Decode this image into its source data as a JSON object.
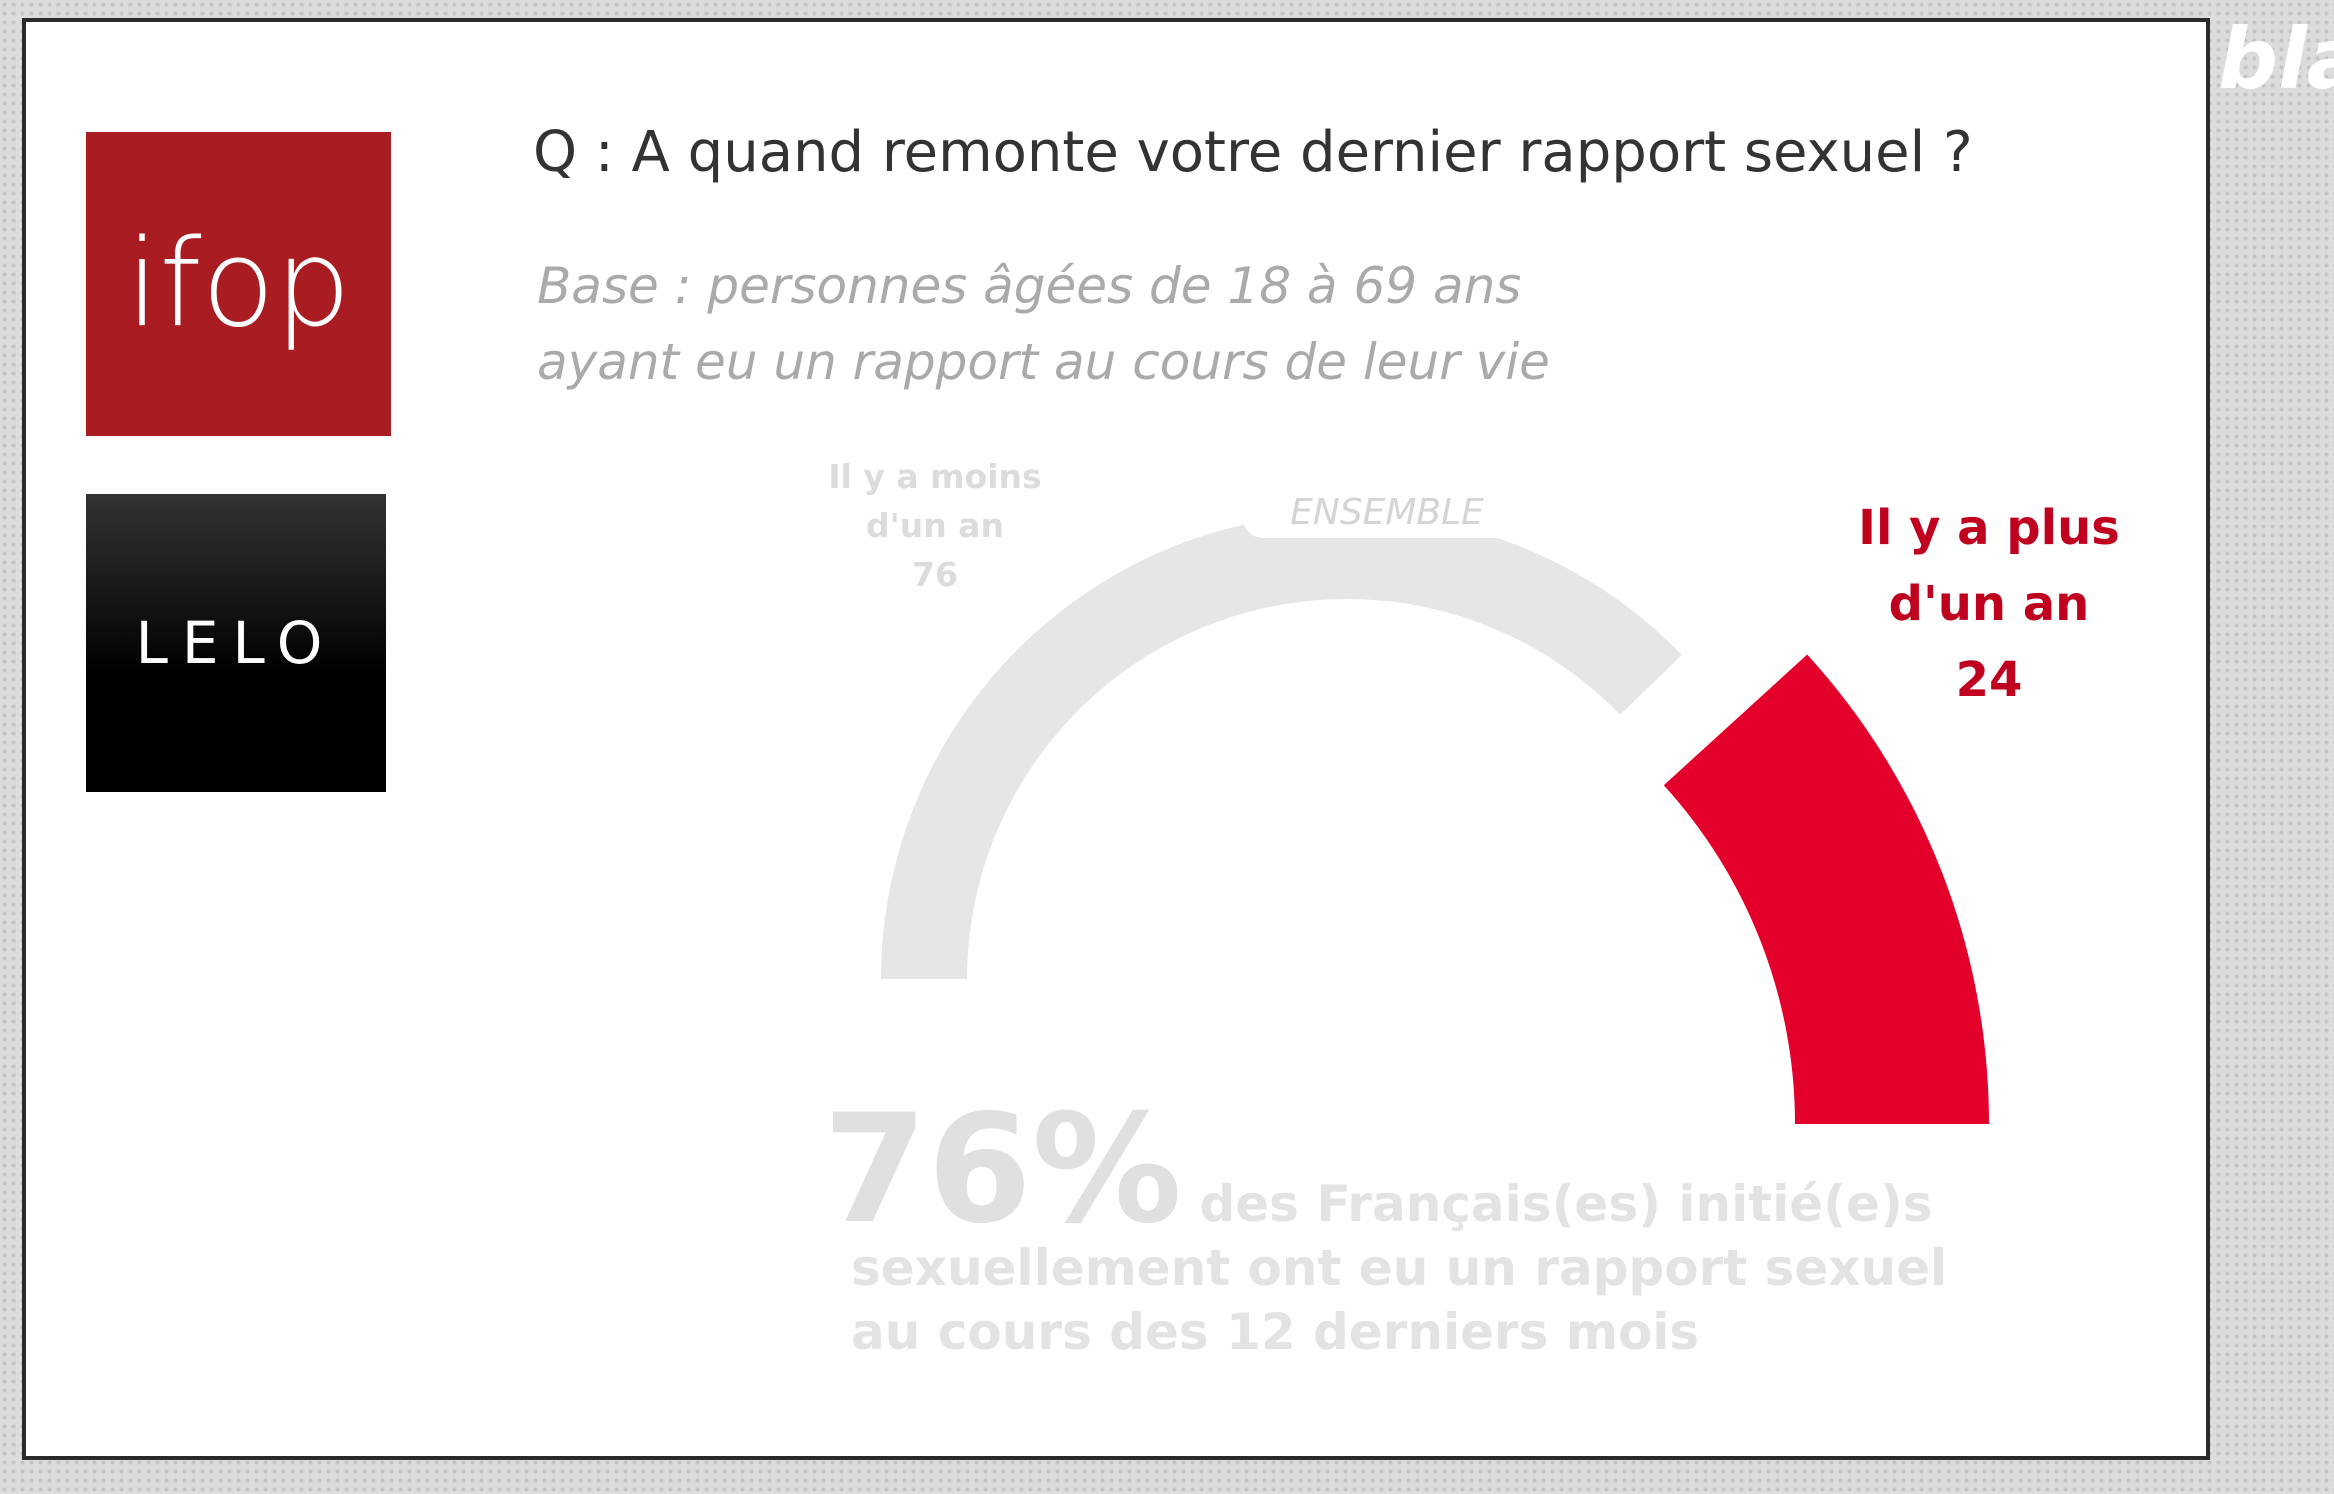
{
  "logos": {
    "ifop": "ifop",
    "lelo": "LELO"
  },
  "watermark": "bla",
  "chart_data": {
    "type": "gauge",
    "title": "Q : A quand remonte votre dernier rapport sexuel ?",
    "subtitle": "Base : personnes âgées de 18 à 69 ans ayant eu un rapport au cours de leur vie",
    "center_label": "ENSEMBLE",
    "categories": [
      "Il y a moins d'un an",
      "Il y a plus d'un an"
    ],
    "values": [
      76,
      24
    ],
    "colors": [
      "#e6e6e6",
      "#e3002b"
    ],
    "highlight": 1,
    "annotation": {
      "value": 76,
      "label": "76%",
      "text": "des Français(es) initié(e)s sexuellement ont eu un rapport sexuel au cours des 12 derniers mois"
    }
  }
}
